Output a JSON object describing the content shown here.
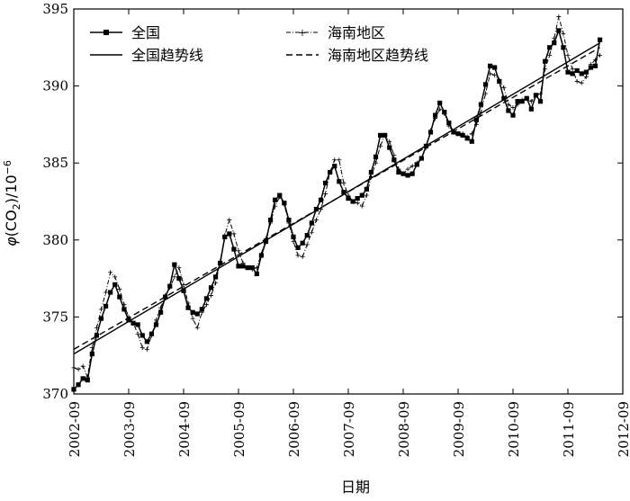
{
  "chart_data": {
    "type": "line",
    "xlabel": "日期",
    "ylabel": "φ(CO₂)/10⁻⁶",
    "ylabel_parts": [
      "φ",
      "(CO",
      "2",
      ")/10",
      "−6"
    ],
    "ylim": [
      370,
      395
    ],
    "xlim": [
      "2002-09",
      "2012-09"
    ],
    "x_ticks": [
      "2002-09",
      "2003-09",
      "2004-09",
      "2005-09",
      "2006-09",
      "2007-09",
      "2008-09",
      "2009-09",
      "2010-09",
      "2011-09",
      "2012-09"
    ],
    "y_ticks": [
      370,
      375,
      380,
      385,
      390,
      395
    ],
    "grid": false,
    "legend_position": "top",
    "series": [
      {
        "name": "全国",
        "style": "solid-square",
        "x": [
          "2002-09",
          "2002-10",
          "2002-11",
          "2002-12",
          "2003-01",
          "2003-02",
          "2003-03",
          "2003-04",
          "2003-05",
          "2003-06",
          "2003-07",
          "2003-08",
          "2003-09",
          "2003-10",
          "2003-11",
          "2003-12",
          "2004-01",
          "2004-02",
          "2004-03",
          "2004-04",
          "2004-05",
          "2004-06",
          "2004-07",
          "2004-08",
          "2004-09",
          "2004-10",
          "2004-11",
          "2004-12",
          "2005-01",
          "2005-02",
          "2005-03",
          "2005-04",
          "2005-05",
          "2005-06",
          "2005-07",
          "2005-08",
          "2005-09",
          "2005-10",
          "2005-11",
          "2005-12",
          "2006-01",
          "2006-02",
          "2006-03",
          "2006-04",
          "2006-05",
          "2006-06",
          "2006-07",
          "2006-08",
          "2006-09",
          "2006-10",
          "2006-11",
          "2006-12",
          "2007-01",
          "2007-02",
          "2007-03",
          "2007-04",
          "2007-05",
          "2007-06",
          "2007-07",
          "2007-08",
          "2007-09",
          "2007-10",
          "2007-11",
          "2007-12",
          "2008-01",
          "2008-02",
          "2008-03",
          "2008-04",
          "2008-05",
          "2008-06",
          "2008-07",
          "2008-08",
          "2008-09",
          "2008-10",
          "2008-11",
          "2008-12",
          "2009-01",
          "2009-02",
          "2009-03",
          "2009-04",
          "2009-05",
          "2009-06",
          "2009-07",
          "2009-08",
          "2009-09",
          "2009-10",
          "2009-11",
          "2009-12",
          "2010-01",
          "2010-02",
          "2010-03",
          "2010-04",
          "2010-05",
          "2010-06",
          "2010-07",
          "2010-08",
          "2010-09",
          "2010-10",
          "2010-11",
          "2010-12",
          "2011-01",
          "2011-02",
          "2011-03",
          "2011-04",
          "2011-05",
          "2011-06",
          "2011-07",
          "2011-08",
          "2011-09",
          "2011-10",
          "2011-11",
          "2011-12",
          "2012-01",
          "2012-02",
          "2012-03",
          "2012-04"
        ],
        "values": [
          370.3,
          370.6,
          371.0,
          370.9,
          372.6,
          373.8,
          374.9,
          375.7,
          376.6,
          377.1,
          376.3,
          375.5,
          374.8,
          374.6,
          374.5,
          373.8,
          373.4,
          373.9,
          374.5,
          375.3,
          376.3,
          377.0,
          378.4,
          377.5,
          376.7,
          375.6,
          375.3,
          375.2,
          375.5,
          376.2,
          376.9,
          377.6,
          378.5,
          380.2,
          380.4,
          379.4,
          378.3,
          378.3,
          378.2,
          378.2,
          377.8,
          379.0,
          379.9,
          381.3,
          382.6,
          382.9,
          382.4,
          381.3,
          380.2,
          379.5,
          379.8,
          380.3,
          381.1,
          382.0,
          382.6,
          383.7,
          384.4,
          384.8,
          383.8,
          383.1,
          382.7,
          382.5,
          382.7,
          382.9,
          383.3,
          384.4,
          385.4,
          386.8,
          386.8,
          386.0,
          385.2,
          384.4,
          384.3,
          384.2,
          384.3,
          384.9,
          385.3,
          386.1,
          387.0,
          388.1,
          388.9,
          388.3,
          387.6,
          387.0,
          386.9,
          386.8,
          386.6,
          386.4,
          387.8,
          388.8,
          390.1,
          391.3,
          391.2,
          390.3,
          389.2,
          388.4,
          388.1,
          389.0,
          389.0,
          389.2,
          388.5,
          389.4,
          389.0,
          391.6,
          392.5,
          392.8,
          393.6,
          392.5,
          390.9,
          390.8,
          391.0,
          390.8,
          390.9,
          391.2,
          391.3,
          393.0
        ]
      },
      {
        "name": "海南地区",
        "style": "dashdot-plus",
        "x": [
          "2002-09",
          "2002-10",
          "2002-11",
          "2002-12",
          "2003-01",
          "2003-02",
          "2003-03",
          "2003-04",
          "2003-05",
          "2003-06",
          "2003-07",
          "2003-08",
          "2003-09",
          "2003-10",
          "2003-11",
          "2003-12",
          "2004-01",
          "2004-02",
          "2004-03",
          "2004-04",
          "2004-05",
          "2004-06",
          "2004-07",
          "2004-08",
          "2004-09",
          "2004-10",
          "2004-11",
          "2004-12",
          "2005-01",
          "2005-02",
          "2005-03",
          "2005-04",
          "2005-05",
          "2005-06",
          "2005-07",
          "2005-08",
          "2005-09",
          "2005-10",
          "2005-11",
          "2005-12",
          "2006-01",
          "2006-02",
          "2006-03",
          "2006-04",
          "2006-05",
          "2006-06",
          "2006-07",
          "2006-08",
          "2006-09",
          "2006-10",
          "2006-11",
          "2006-12",
          "2007-01",
          "2007-02",
          "2007-03",
          "2007-04",
          "2007-05",
          "2007-06",
          "2007-07",
          "2007-08",
          "2007-09",
          "2007-10",
          "2007-11",
          "2007-12",
          "2008-01",
          "2008-02",
          "2008-03",
          "2008-04",
          "2008-05",
          "2008-06",
          "2008-07",
          "2008-08",
          "2008-09",
          "2008-10",
          "2008-11",
          "2008-12",
          "2009-01",
          "2009-02",
          "2009-03",
          "2009-04",
          "2009-05",
          "2009-06",
          "2009-07",
          "2009-08",
          "2009-09",
          "2009-10",
          "2009-11",
          "2009-12",
          "2010-01",
          "2010-02",
          "2010-03",
          "2010-04",
          "2010-05",
          "2010-06",
          "2010-07",
          "2010-08",
          "2010-09",
          "2010-10",
          "2010-11",
          "2010-12",
          "2011-01",
          "2011-02",
          "2011-03",
          "2011-04",
          "2011-05",
          "2011-06",
          "2011-07",
          "2011-08",
          "2011-09",
          "2011-10",
          "2011-11",
          "2011-12",
          "2012-01",
          "2012-02",
          "2012-03",
          "2012-04"
        ],
        "values": [
          371.7,
          371.6,
          371.8,
          371.1,
          373.0,
          374.3,
          375.5,
          376.6,
          377.9,
          377.6,
          376.8,
          375.8,
          375.0,
          374.6,
          373.9,
          373.0,
          372.9,
          373.8,
          374.8,
          375.6,
          376.4,
          376.9,
          377.6,
          378.2,
          377.1,
          375.9,
          374.9,
          374.3,
          375.3,
          375.8,
          376.4,
          377.2,
          378.6,
          380.3,
          381.3,
          380.4,
          379.3,
          378.5,
          378.2,
          378.1,
          378.2,
          379.1,
          380.1,
          381.1,
          382.2,
          382.8,
          382.3,
          381.1,
          379.9,
          379.0,
          378.9,
          379.7,
          380.5,
          381.3,
          382.0,
          383.0,
          384.4,
          385.2,
          385.2,
          383.7,
          382.9,
          382.5,
          382.4,
          382.2,
          382.9,
          384.1,
          385.0,
          386.1,
          386.8,
          386.4,
          385.5,
          384.6,
          384.3,
          384.6,
          384.8,
          385.0,
          385.3,
          386.0,
          387.1,
          387.9,
          388.5,
          388.2,
          387.4,
          387.0,
          386.9,
          386.9,
          386.7,
          386.9,
          387.5,
          388.3,
          389.5,
          390.8,
          390.7,
          390.4,
          389.9,
          388.8,
          388.6,
          388.8,
          389.1,
          389.2,
          389.0,
          389.4,
          389.5,
          391.1,
          392.0,
          393.1,
          394.5,
          393.4,
          392.0,
          391.1,
          390.3,
          390.2,
          390.6,
          391.4,
          391.7,
          392.0
        ]
      }
    ],
    "trends": [
      {
        "name": "全国趋势线",
        "style": "solid",
        "x": [
          "2002-09",
          "2012-04"
        ],
        "values": [
          372.6,
          392.8
        ]
      },
      {
        "name": "海南地区趋势线",
        "style": "dashed",
        "x": [
          "2002-09",
          "2012-04"
        ],
        "values": [
          372.9,
          392.5
        ]
      }
    ]
  }
}
